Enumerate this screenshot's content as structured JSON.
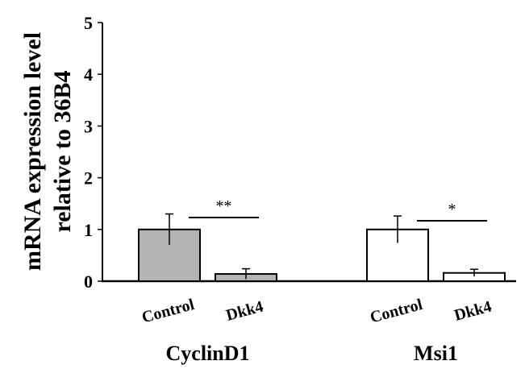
{
  "chart_data": {
    "type": "bar",
    "ylabel_lines": [
      "mRNA expression level",
      "relative to 36B4"
    ],
    "ylim": [
      0,
      5
    ],
    "yticks": [
      0,
      1,
      2,
      3,
      4,
      5
    ],
    "groups": [
      {
        "name": "CyclinD1",
        "bars": [
          {
            "label": "Control",
            "value": 1.0,
            "error": 0.3,
            "fill": "#b3b3b3"
          },
          {
            "label": "Dkk4",
            "value": 0.14,
            "error": 0.1,
            "fill": "#b3b3b3"
          }
        ],
        "significance": "**"
      },
      {
        "name": "Msi1",
        "bars": [
          {
            "label": "Control",
            "value": 1.0,
            "error": 0.26,
            "fill": "#ffffff"
          },
          {
            "label": "Dkk4",
            "value": 0.16,
            "error": 0.07,
            "fill": "#ffffff"
          }
        ],
        "significance": "*"
      }
    ],
    "grid": false,
    "legend": "none"
  }
}
